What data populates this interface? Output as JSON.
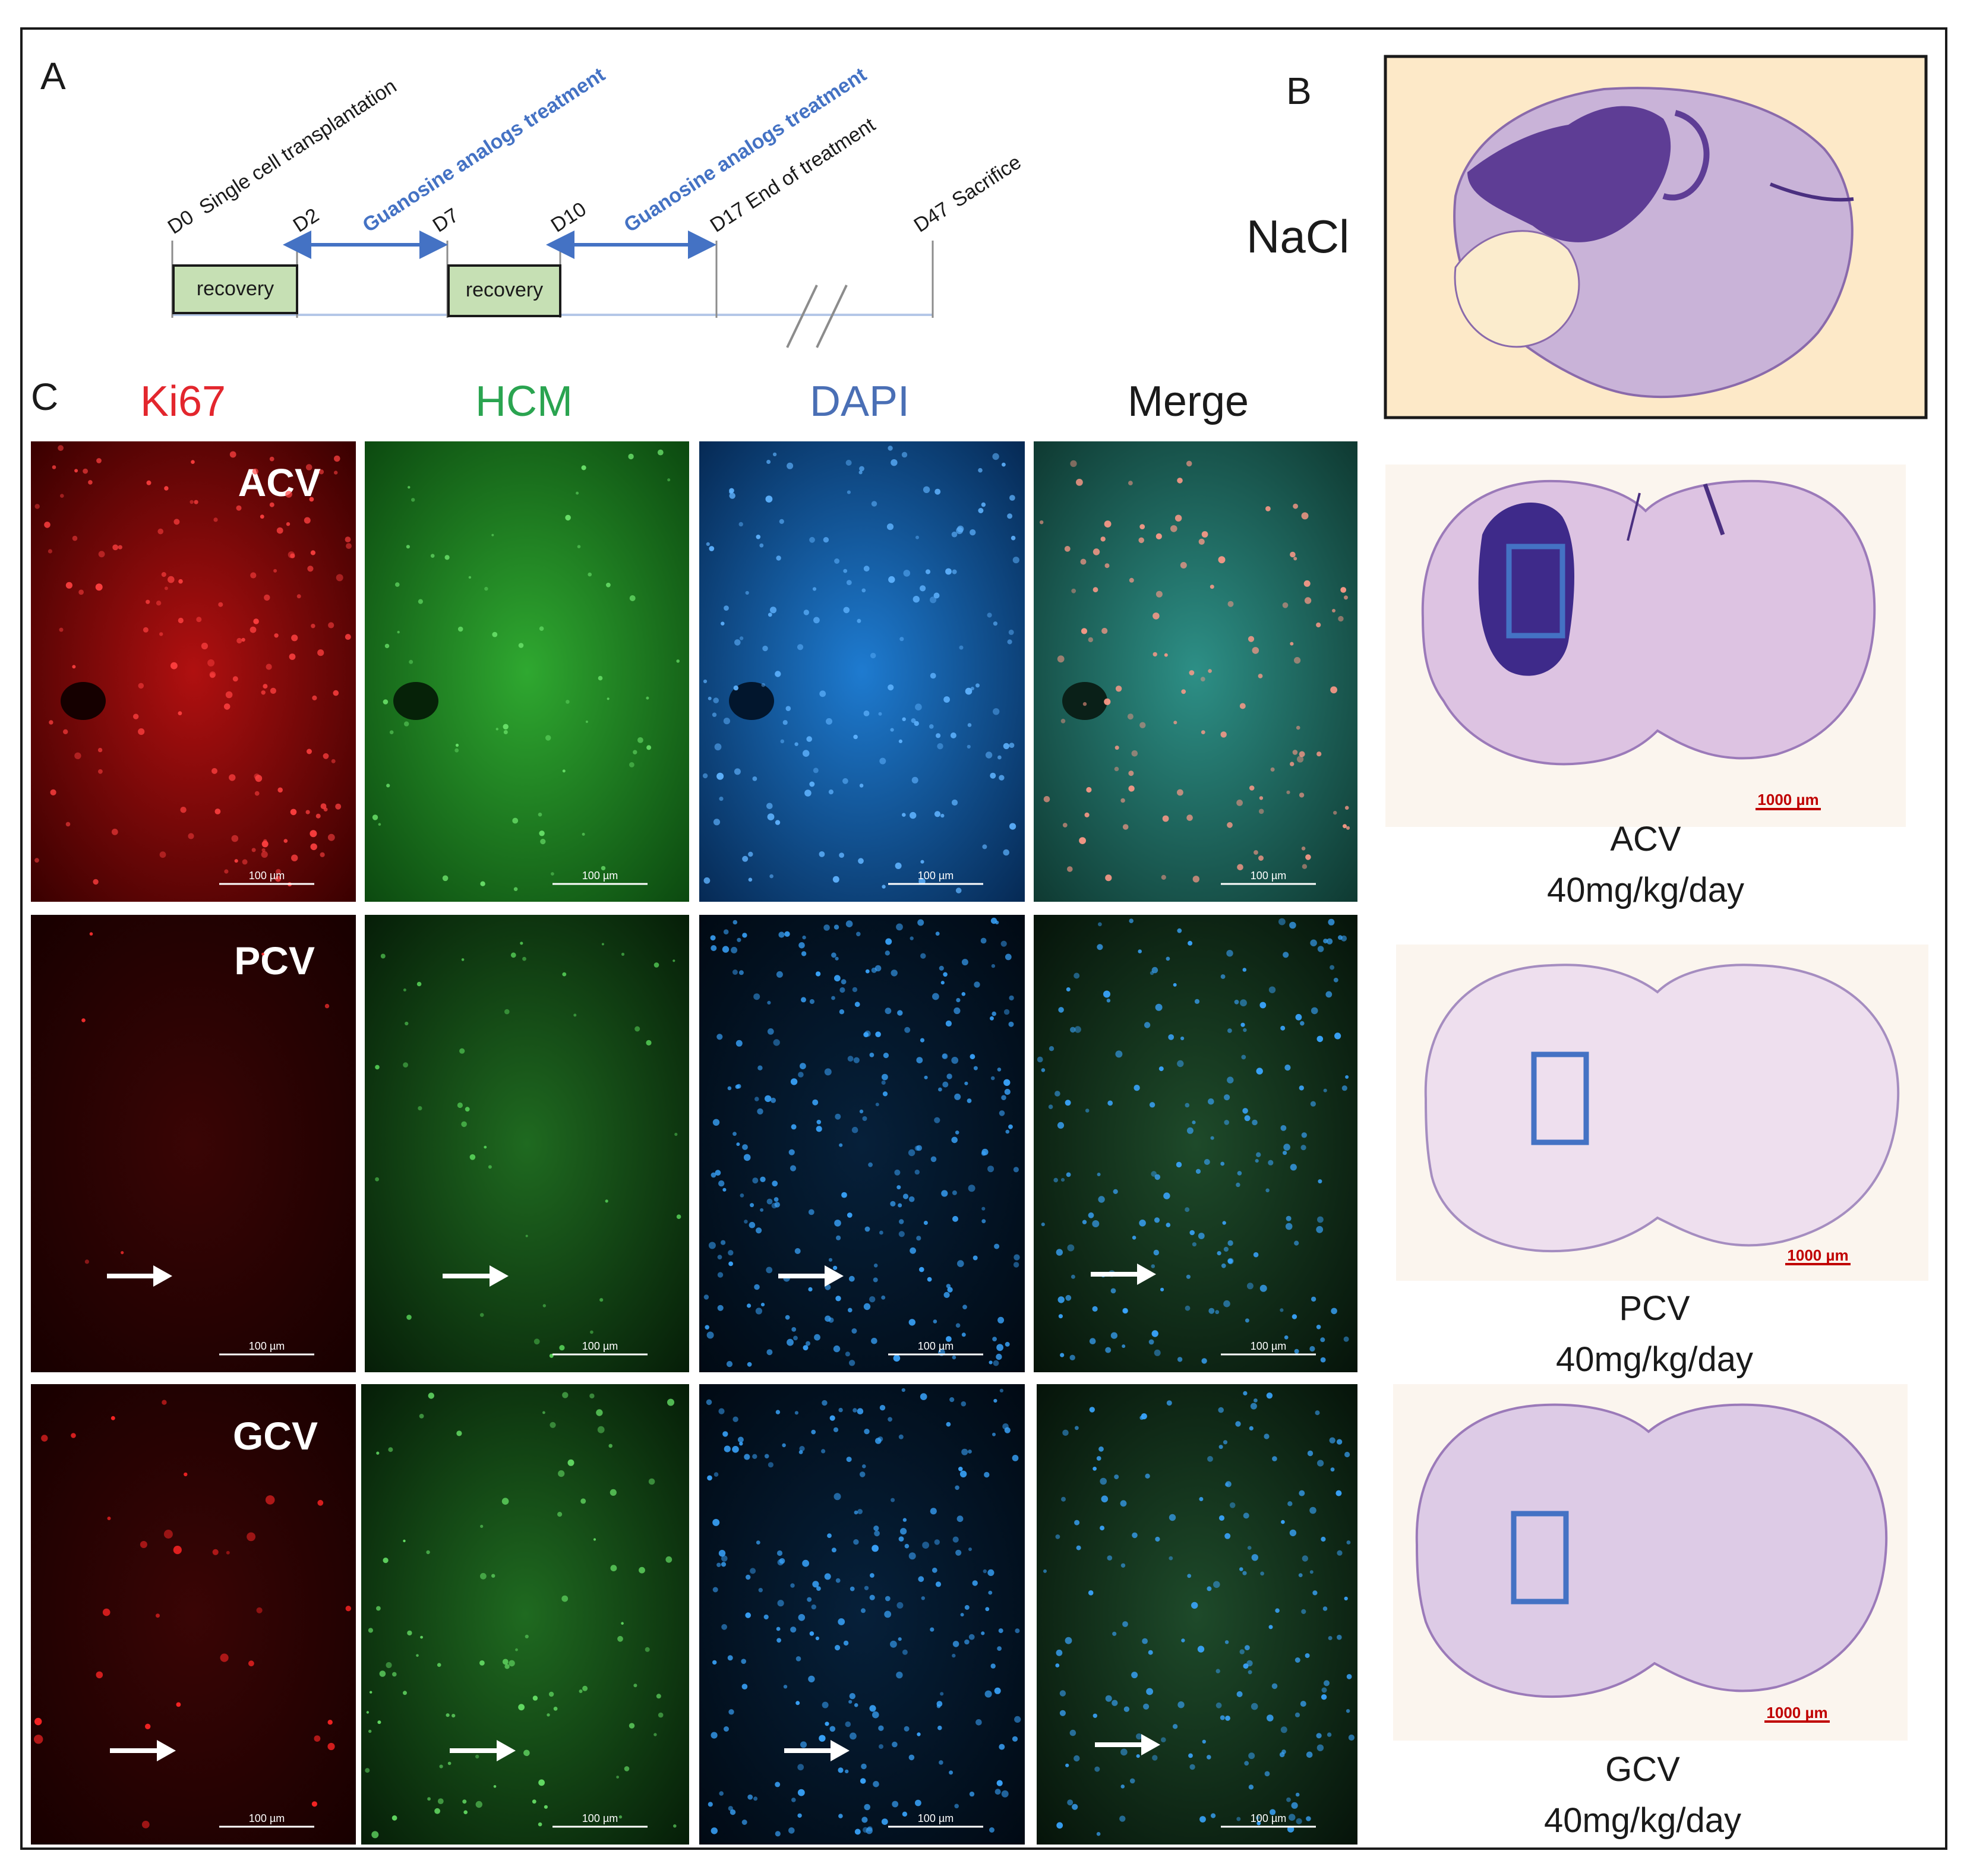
{
  "panel_letters": {
    "a": "A",
    "b": "B",
    "c": "C"
  },
  "timeline": {
    "events": [
      {
        "day": "D0",
        "label": "Single cell transplantation"
      },
      {
        "day": "D2",
        "label": ""
      },
      {
        "day": "D7",
        "label": ""
      },
      {
        "day": "D10",
        "label": ""
      },
      {
        "day": "D17",
        "label": "End of treatment"
      },
      {
        "day": "D47",
        "label": "Sacrifice"
      }
    ],
    "treatments": [
      "Guanosine analogs treatment",
      "Guanosine analogs treatment"
    ],
    "recovery_boxes": [
      "recovery",
      "recovery"
    ]
  },
  "panel_c": {
    "channels": [
      {
        "name": "Ki67",
        "color": "#e3262d"
      },
      {
        "name": "HCM",
        "color": "#2aa450"
      },
      {
        "name": "DAPI",
        "color": "#4a6fb5"
      },
      {
        "name": "Merge",
        "color": "#1a1a1a"
      }
    ],
    "rows": [
      "ACV",
      "PCV",
      "GCV"
    ],
    "scale_bar": "100 µm"
  },
  "panel_b": {
    "control_label": "NaCl",
    "sections": [
      {
        "drug": "ACV",
        "dose": "40mg/kg/day"
      },
      {
        "drug": "PCV",
        "dose": "40mg/kg/day"
      },
      {
        "drug": "GCV",
        "dose": "40mg/kg/day"
      }
    ],
    "scale_bar": "1000 µm"
  },
  "colors": {
    "treatment_arrow": "#4472c4",
    "recovery_fill": "#c6e0b4",
    "roi_box": "#4472c4",
    "scale_red": "#c00000"
  }
}
